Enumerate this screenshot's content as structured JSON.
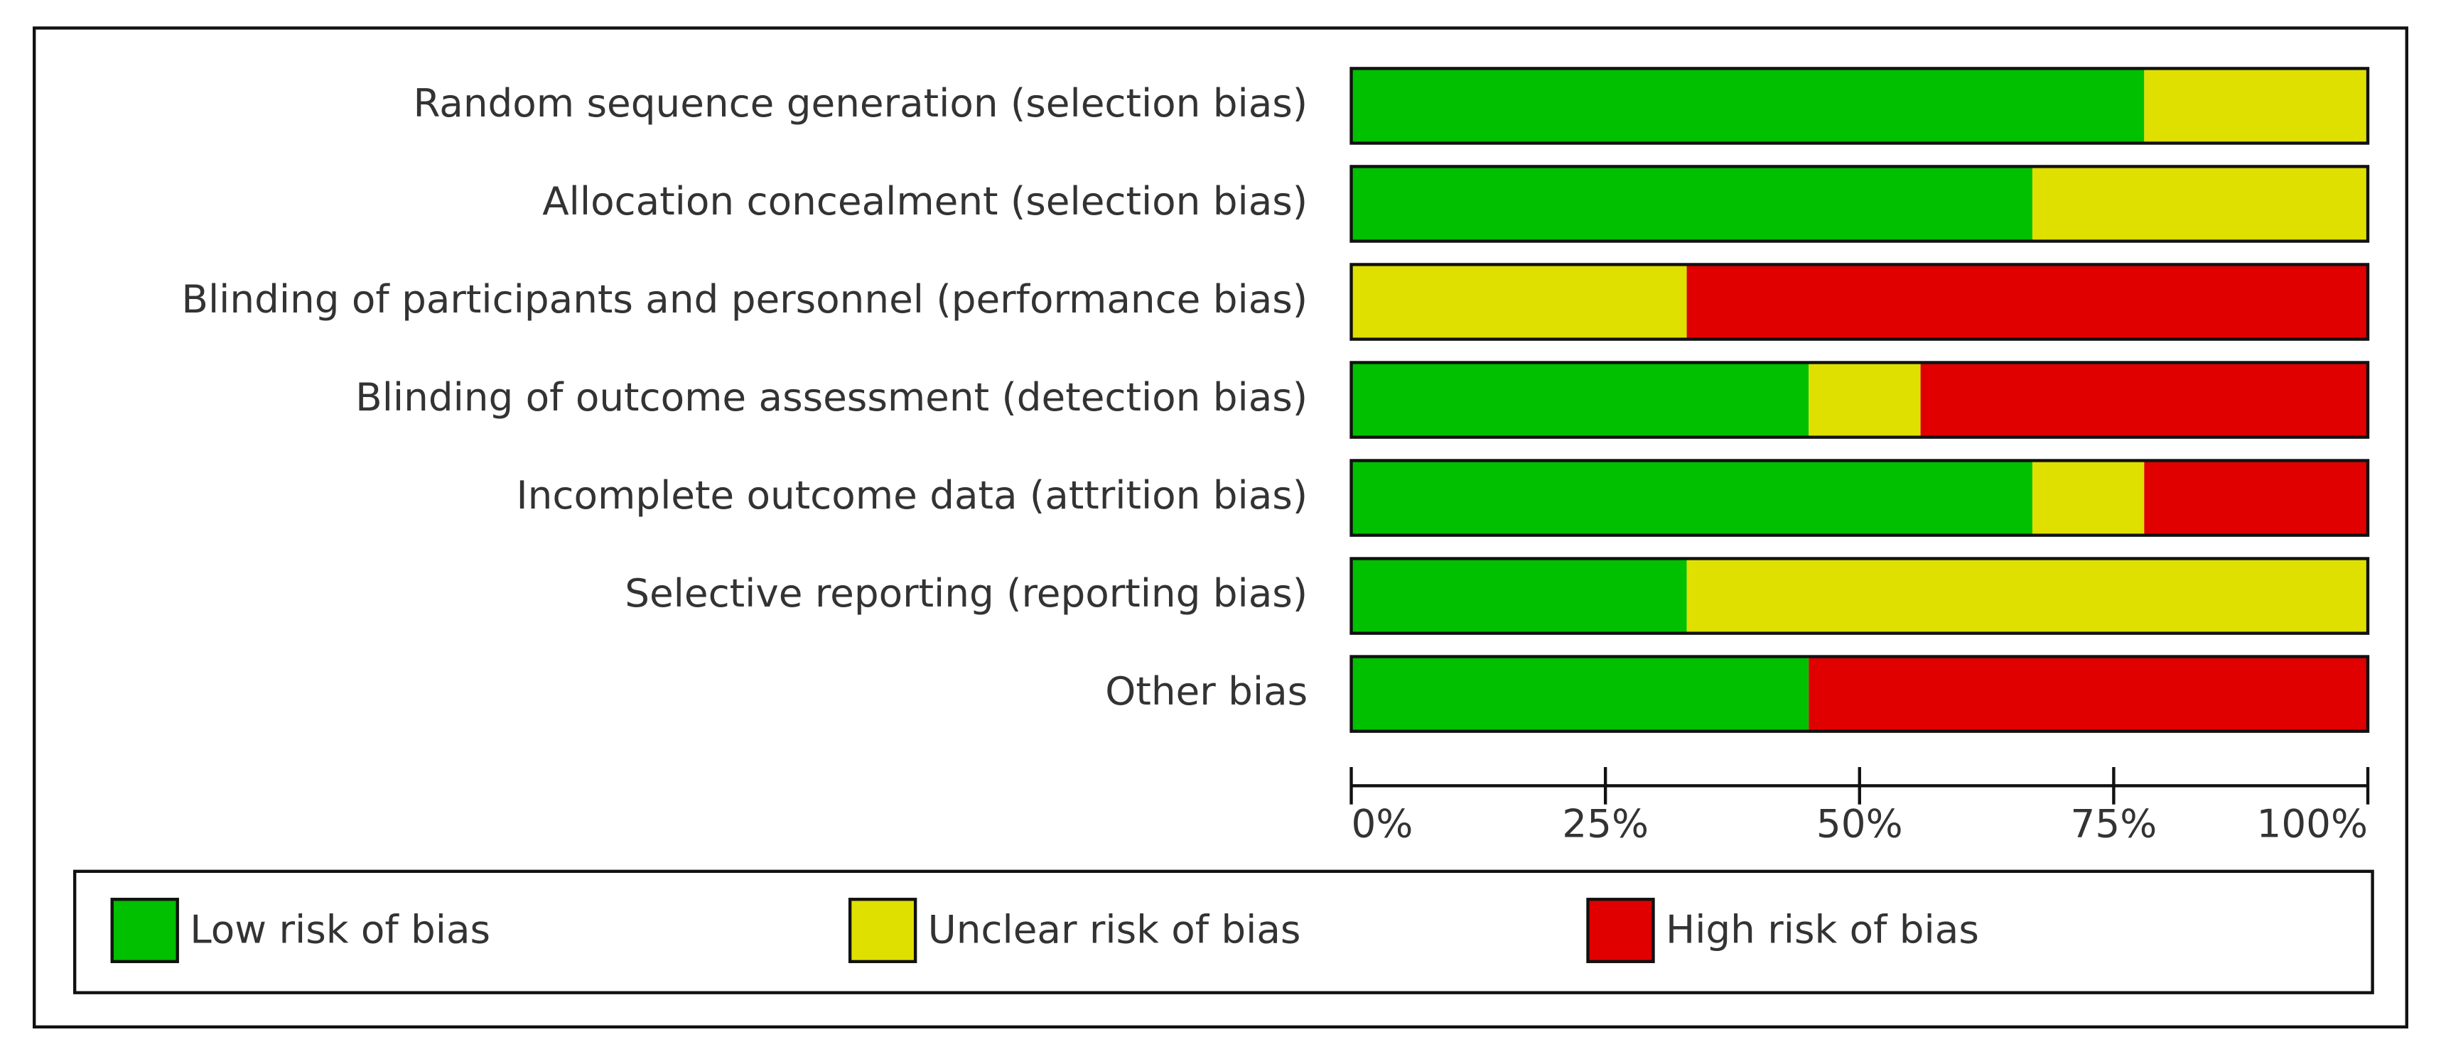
{
  "chart_data": {
    "type": "stacked-bar-horizontal",
    "categories": [
      "Random sequence generation (selection bias)",
      "Allocation concealment (selection bias)",
      "Blinding of participants and personnel (performance bias)",
      "Blinding of outcome assessment (detection bias)",
      "Incomplete outcome data (attrition bias)",
      "Selective reporting (reporting bias)",
      "Other bias"
    ],
    "series": [
      {
        "name": "Low risk of bias",
        "color": "#00c000",
        "values": [
          78,
          67,
          0,
          45,
          67,
          33,
          45
        ]
      },
      {
        "name": "Unclear risk of bias",
        "color": "#e0e000",
        "values": [
          22,
          33,
          33,
          11,
          11,
          67,
          0
        ]
      },
      {
        "name": "High risk of bias",
        "color": "#e00000",
        "values": [
          0,
          0,
          67,
          44,
          22,
          0,
          55
        ]
      }
    ],
    "xlim": [
      0,
      100
    ],
    "xticks": [
      {
        "value": 0,
        "label": "0%"
      },
      {
        "value": 25,
        "label": "25%"
      },
      {
        "value": 50,
        "label": "50%"
      },
      {
        "value": 75,
        "label": "75%"
      },
      {
        "value": 100,
        "label": "100%"
      }
    ],
    "legend": "bottom"
  }
}
